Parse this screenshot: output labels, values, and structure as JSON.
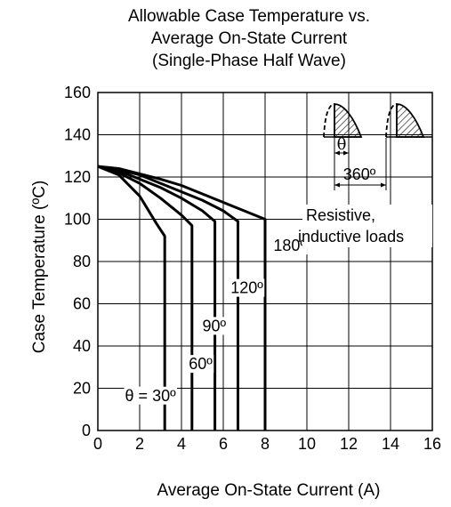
{
  "chart_data": {
    "type": "line",
    "title": [
      "Allowable Case Temperature vs.",
      "Average On-State Current",
      "(Single-Phase Half Wave)"
    ],
    "xlabel": "Average On-State Current  (A)",
    "ylabel": "Case Temperature  (ºC)",
    "xlim": [
      0,
      16
    ],
    "ylim": [
      0,
      160
    ],
    "xticks": [
      "0",
      "2",
      "4",
      "6",
      "8",
      "10",
      "12",
      "14",
      "16"
    ],
    "yticks": [
      "0",
      "20",
      "40",
      "60",
      "80",
      "100",
      "120",
      "140",
      "160"
    ],
    "grid": true,
    "series": [
      {
        "name": "θ = 30º",
        "points": [
          [
            0,
            125
          ],
          [
            1,
            121
          ],
          [
            2,
            111
          ],
          [
            2.8,
            98
          ],
          [
            3.2,
            92
          ],
          [
            3.2,
            0
          ]
        ]
      },
      {
        "name": "60º",
        "points": [
          [
            0,
            125
          ],
          [
            1,
            122
          ],
          [
            2,
            117
          ],
          [
            3,
            110
          ],
          [
            4,
            102
          ],
          [
            4.5,
            97
          ],
          [
            4.5,
            0
          ]
        ]
      },
      {
        "name": "90º",
        "points": [
          [
            0,
            125
          ],
          [
            1,
            123
          ],
          [
            2,
            119
          ],
          [
            3,
            115
          ],
          [
            4,
            110
          ],
          [
            5,
            104
          ],
          [
            5.6,
            99
          ],
          [
            5.6,
            0
          ]
        ]
      },
      {
        "name": "120º",
        "points": [
          [
            0,
            125
          ],
          [
            1,
            123.5
          ],
          [
            2,
            121
          ],
          [
            3,
            117
          ],
          [
            4,
            113
          ],
          [
            5,
            109
          ],
          [
            6,
            104
          ],
          [
            6.7,
            99
          ],
          [
            6.7,
            0
          ]
        ]
      },
      {
        "name": "180º",
        "points": [
          [
            0,
            125
          ],
          [
            1,
            124
          ],
          [
            2,
            121.5
          ],
          [
            3,
            119
          ],
          [
            4,
            116
          ],
          [
            5,
            112
          ],
          [
            6,
            108
          ],
          [
            7,
            104
          ],
          [
            8,
            100
          ],
          [
            8,
            0
          ]
        ]
      }
    ],
    "series_labels": [
      {
        "text": "θ = 30º",
        "x": 1.3,
        "y": 14
      },
      {
        "text": "60º",
        "x": 4.35,
        "y": 29
      },
      {
        "text": "90º",
        "x": 5.0,
        "y": 47
      },
      {
        "text": "120º",
        "x": 6.35,
        "y": 65
      },
      {
        "text": "180º",
        "x": 8.4,
        "y": 85
      }
    ],
    "annotations": {
      "theta_symbol": "θ",
      "period_label": "360º",
      "loads_line1": "Resistive,",
      "loads_line2": "inductive loads"
    }
  }
}
